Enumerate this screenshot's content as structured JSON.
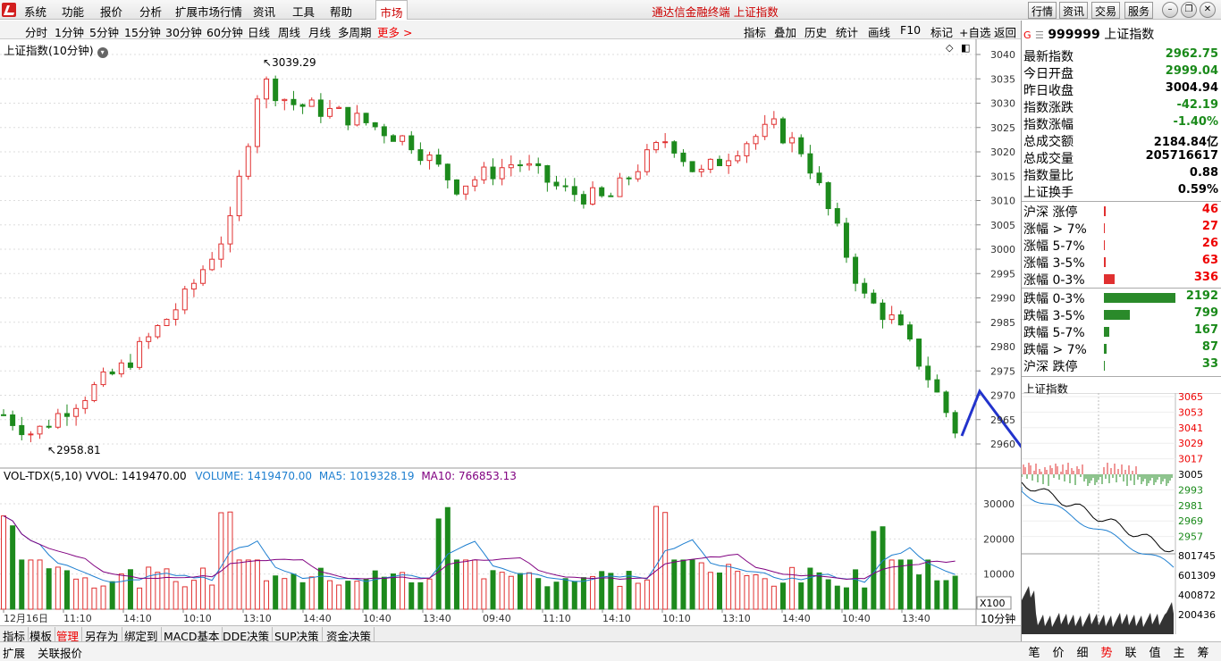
{
  "menu": [
    "系统",
    "功能",
    "报价",
    "分析",
    "扩展市场行情",
    "资讯",
    "工具",
    "帮助"
  ],
  "market_tab": "市场",
  "title": "通达信金融终端  上证指数",
  "top_buttons": [
    "行情",
    "资讯",
    "交易",
    "服务"
  ],
  "periods": [
    "分时",
    "1分钟",
    "5分钟",
    "15分钟",
    "30分钟",
    "60分钟",
    "日线",
    "周线",
    "月线",
    "多周期"
  ],
  "more": "更多 >",
  "tools": [
    "指标",
    "叠加",
    "历史",
    "统计",
    "画线",
    "F10",
    "标记",
    "+自选",
    "返回"
  ],
  "chart_label": "上证指数(10分钟)",
  "price_high_label": "3039.29",
  "price_low_label": "2958.81",
  "price_axis": [
    "3040",
    "3035",
    "3030",
    "3025",
    "3020",
    "3015",
    "3010",
    "3005",
    "3000",
    "2995",
    "2990",
    "2985",
    "2980",
    "2975",
    "2970",
    "2965",
    "2960"
  ],
  "vol_header": {
    "name": "VOL-TDX(5,10)",
    "vvol": "VVOL: 1419470.00",
    "volume": "VOLUME: 1419470.00",
    "ma5": "MA5: 1019328.19",
    "ma10": "MA10: 766853.13"
  },
  "vol_axis": [
    "30000",
    "20000",
    "10000"
  ],
  "vol_unit": "X100",
  "time_axis": [
    "12月16日",
    "11:10",
    "14:10",
    "10:10",
    "13:10",
    "14:40",
    "10:40",
    "13:40",
    "09:40",
    "11:10",
    "14:10",
    "10:10",
    "13:10",
    "14:40",
    "10:40",
    "13:40"
  ],
  "period_label": "10分钟",
  "quote": {
    "code": "999999",
    "name": "上证指数",
    "rows": [
      {
        "label": "最新指数",
        "value": "2962.75",
        "color": "green"
      },
      {
        "label": "今日开盘",
        "value": "2999.04",
        "color": "green"
      },
      {
        "label": "昨日收盘",
        "value": "3004.94",
        "color": "black"
      },
      {
        "label": "指数涨跌",
        "value": "-42.19",
        "color": "green"
      },
      {
        "label": "指数涨幅",
        "value": "-1.40%",
        "color": "green"
      },
      {
        "label": "总成交额",
        "value": "2184.84亿",
        "color": "black"
      },
      {
        "label": "总成交量",
        "value": "205716617",
        "color": "black"
      },
      {
        "label": "指数量比",
        "value": "0.88",
        "color": "black"
      },
      {
        "label": "上证换手",
        "value": "0.59%",
        "color": "black"
      }
    ]
  },
  "breadth": [
    {
      "label": "沪深 涨停",
      "value": "46",
      "color": "red",
      "bar": 0.02
    },
    {
      "label": "涨幅 > 7%",
      "value": "27",
      "color": "red",
      "bar": 0.01
    },
    {
      "label": "涨幅 5-7%",
      "value": "26",
      "color": "red",
      "bar": 0.01
    },
    {
      "label": "涨幅 3-5%",
      "value": "63",
      "color": "red",
      "bar": 0.03
    },
    {
      "label": "涨幅 0-3%",
      "value": "336",
      "color": "red",
      "bar": 0.15
    },
    {
      "label": "跌幅 0-3%",
      "value": "2192",
      "color": "green",
      "bar": 1.0
    },
    {
      "label": "跌幅 3-5%",
      "value": "799",
      "color": "green",
      "bar": 0.36
    },
    {
      "label": "跌幅 5-7%",
      "value": "167",
      "color": "green",
      "bar": 0.08
    },
    {
      "label": "跌幅 > 7%",
      "value": "87",
      "color": "green",
      "bar": 0.04
    },
    {
      "label": "沪深 跌停",
      "value": "33",
      "color": "green",
      "bar": 0.015
    }
  ],
  "mini_title": "上证指数",
  "mini_axis": [
    "3065",
    "3053",
    "3041",
    "3029",
    "3017",
    "3005",
    "2993",
    "2981",
    "2969",
    "2957"
  ],
  "mini_vol_axis": [
    "801745",
    "601309",
    "400872",
    "200436"
  ],
  "bottom_tabs": [
    "指标",
    "模板",
    "管理",
    "另存为",
    "绑定到",
    "MACD基本",
    "DDE决策",
    "SUP决策",
    "资金决策"
  ],
  "bottom_tabs2": [
    "扩展",
    "关联报价"
  ],
  "right_tabs": [
    "笔",
    "价",
    "细",
    "势",
    "联",
    "值",
    "主",
    "筹"
  ]
}
